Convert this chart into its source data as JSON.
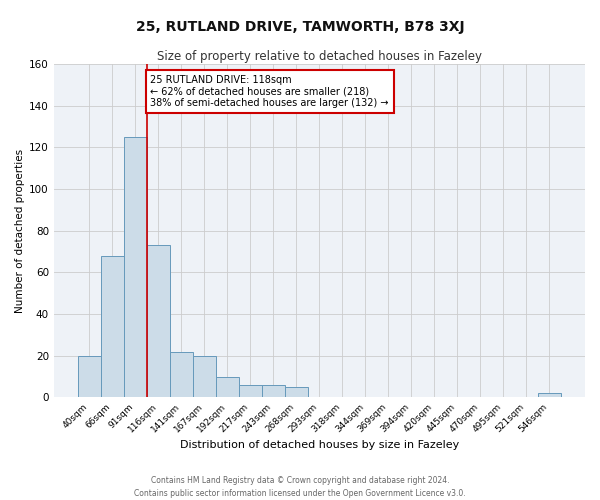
{
  "title1": "25, RUTLAND DRIVE, TAMWORTH, B78 3XJ",
  "title2": "Size of property relative to detached houses in Fazeley",
  "xlabel": "Distribution of detached houses by size in Fazeley",
  "ylabel": "Number of detached properties",
  "bar_labels": [
    "40sqm",
    "66sqm",
    "91sqm",
    "116sqm",
    "141sqm",
    "167sqm",
    "192sqm",
    "217sqm",
    "243sqm",
    "268sqm",
    "293sqm",
    "318sqm",
    "344sqm",
    "369sqm",
    "394sqm",
    "420sqm",
    "445sqm",
    "470sqm",
    "495sqm",
    "521sqm",
    "546sqm"
  ],
  "bar_values": [
    20,
    68,
    125,
    73,
    22,
    20,
    10,
    6,
    6,
    5,
    0,
    0,
    0,
    0,
    0,
    0,
    0,
    0,
    0,
    0,
    2
  ],
  "bar_color": "#ccdce8",
  "bar_edgecolor": "#6699bb",
  "property_line_index": 3,
  "property_line_color": "#cc0000",
  "ylim": [
    0,
    160
  ],
  "yticks": [
    0,
    20,
    40,
    60,
    80,
    100,
    120,
    140,
    160
  ],
  "annotation_text": "25 RUTLAND DRIVE: 118sqm\n← 62% of detached houses are smaller (218)\n38% of semi-detached houses are larger (132) →",
  "annotation_box_facecolor": "#ffffff",
  "annotation_box_edgecolor": "#cc0000",
  "footer1": "Contains HM Land Registry data © Crown copyright and database right 2024.",
  "footer2": "Contains public sector information licensed under the Open Government Licence v3.0.",
  "background_color": "#ffffff",
  "plot_bg_color": "#eef2f7",
  "grid_color": "#cccccc",
  "title1_fontsize": 10,
  "title2_fontsize": 8.5,
  "xlabel_fontsize": 8,
  "ylabel_fontsize": 7.5
}
